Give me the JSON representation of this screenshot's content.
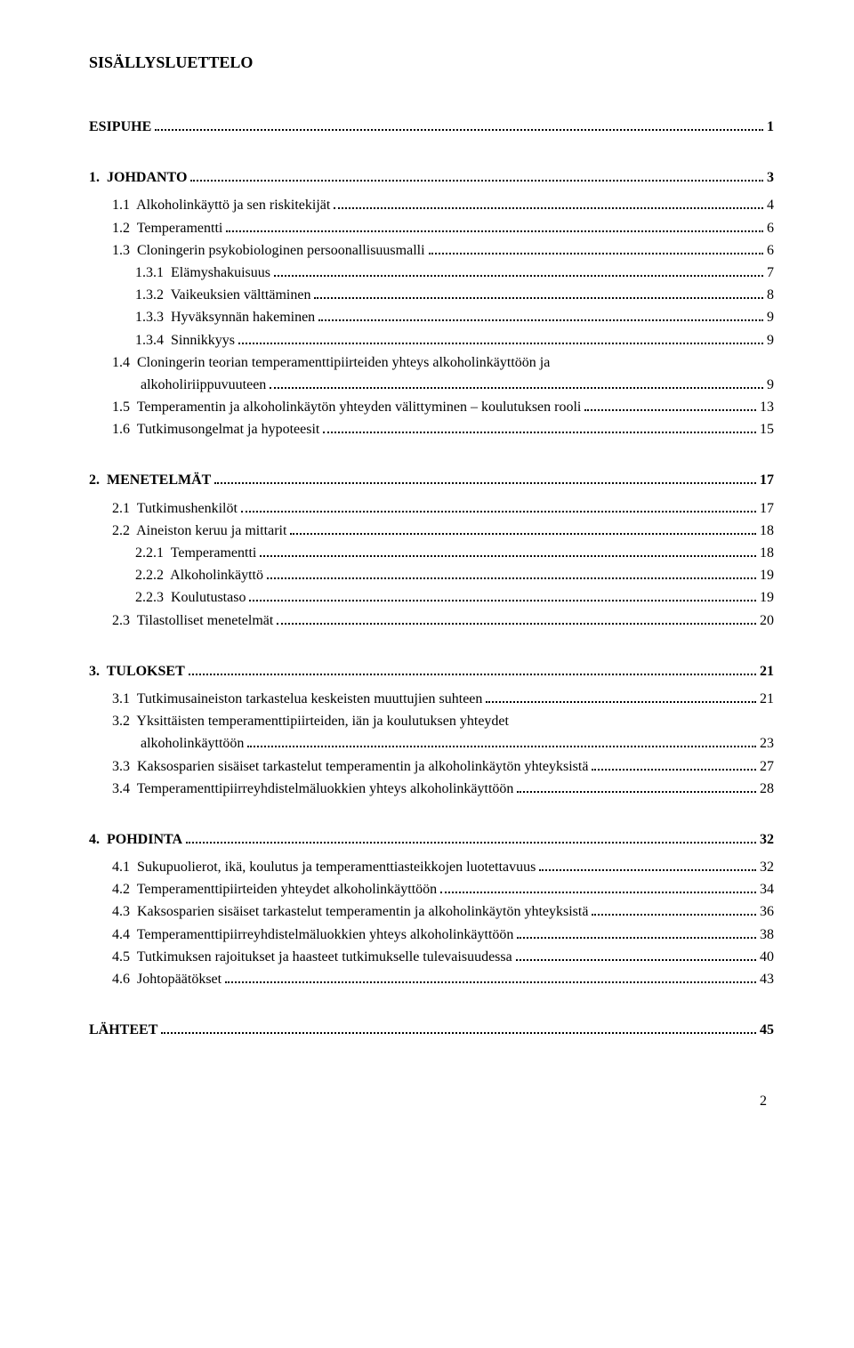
{
  "title": "SISÄLLYSLUETTELO",
  "toc": [
    {
      "label": "ESIPUHE",
      "page": "1",
      "heading": true,
      "indent": 0,
      "gap": "none"
    },
    {
      "label": "1.  JOHDANTO",
      "page": "3",
      "heading": true,
      "indent": 0,
      "gap": "large"
    },
    {
      "label": "1.1  Alkoholinkäyttö ja sen riskitekijät",
      "page": "4",
      "heading": false,
      "indent": 1,
      "gap": "small"
    },
    {
      "label": "1.2  Temperamentti",
      "page": "6",
      "heading": false,
      "indent": 1,
      "gap": "none"
    },
    {
      "label": "1.3  Cloningerin psykobiologinen persoonallisuusmalli",
      "page": "6",
      "heading": false,
      "indent": 1,
      "gap": "none"
    },
    {
      "label": "1.3.1  Elämyshakuisuus",
      "page": "7",
      "heading": false,
      "indent": 2,
      "gap": "none"
    },
    {
      "label": "1.3.2  Vaikeuksien välttäminen",
      "page": "8",
      "heading": false,
      "indent": 2,
      "gap": "none"
    },
    {
      "label": "1.3.3  Hyväksynnän hakeminen",
      "page": "9",
      "heading": false,
      "indent": 2,
      "gap": "none"
    },
    {
      "label": "1.3.4  Sinnikkyys",
      "page": "9",
      "heading": false,
      "indent": 2,
      "gap": "none"
    },
    {
      "label": "1.4  Cloningerin teorian temperamenttipiirteiden yhteys alkoholinkäyttöön ja",
      "page": "",
      "heading": false,
      "indent": 1,
      "gap": "none",
      "nodots": true
    },
    {
      "label": "        alkoholiriippuvuuteen",
      "page": "9",
      "heading": false,
      "indent": 1,
      "gap": "none"
    },
    {
      "label": "1.5  Temperamentin ja alkoholinkäytön yhteyden välittyminen – koulutuksen rooli",
      "page": "13",
      "heading": false,
      "indent": 1,
      "gap": "none"
    },
    {
      "label": "1.6  Tutkimusongelmat ja hypoteesit",
      "page": "15",
      "heading": false,
      "indent": 1,
      "gap": "none"
    },
    {
      "label": "2.  MENETELMÄT",
      "page": "17",
      "heading": true,
      "indent": 0,
      "gap": "large"
    },
    {
      "label": "2.1  Tutkimushenkilöt",
      "page": "17",
      "heading": false,
      "indent": 1,
      "gap": "small"
    },
    {
      "label": "2.2  Aineiston keruu ja mittarit",
      "page": "18",
      "heading": false,
      "indent": 1,
      "gap": "none"
    },
    {
      "label": "2.2.1  Temperamentti",
      "page": "18",
      "heading": false,
      "indent": 2,
      "gap": "none"
    },
    {
      "label": "2.2.2  Alkoholinkäyttö",
      "page": "19",
      "heading": false,
      "indent": 2,
      "gap": "none"
    },
    {
      "label": "2.2.3  Koulutustaso",
      "page": "19",
      "heading": false,
      "indent": 2,
      "gap": "none"
    },
    {
      "label": "2.3  Tilastolliset menetelmät",
      "page": "20",
      "heading": false,
      "indent": 1,
      "gap": "none"
    },
    {
      "label": "3.  TULOKSET",
      "page": "21",
      "heading": true,
      "indent": 0,
      "gap": "large"
    },
    {
      "label": "3.1  Tutkimusaineiston tarkastelua keskeisten muuttujien suhteen",
      "page": "21",
      "heading": false,
      "indent": 1,
      "gap": "small"
    },
    {
      "label": "3.2  Yksittäisten temperamenttipiirteiden, iän ja koulutuksen yhteydet",
      "page": "",
      "heading": false,
      "indent": 1,
      "gap": "none",
      "nodots": true
    },
    {
      "label": "        alkoholinkäyttöön",
      "page": "23",
      "heading": false,
      "indent": 1,
      "gap": "none"
    },
    {
      "label": "3.3  Kaksosparien sisäiset tarkastelut temperamentin ja alkoholinkäytön yhteyksistä",
      "page": "27",
      "heading": false,
      "indent": 1,
      "gap": "none"
    },
    {
      "label": "3.4  Temperamenttipiirreyhdistelmäluokkien yhteys alkoholinkäyttöön",
      "page": "28",
      "heading": false,
      "indent": 1,
      "gap": "none"
    },
    {
      "label": "4.  POHDINTA",
      "page": "32",
      "heading": true,
      "indent": 0,
      "gap": "large"
    },
    {
      "label": "4.1  Sukupuolierot, ikä, koulutus ja temperamenttiasteikkojen luotettavuus",
      "page": "32",
      "heading": false,
      "indent": 1,
      "gap": "small"
    },
    {
      "label": "4.2  Temperamenttipiirteiden yhteydet alkoholinkäyttöön",
      "page": "34",
      "heading": false,
      "indent": 1,
      "gap": "none"
    },
    {
      "label": "4.3  Kaksosparien sisäiset tarkastelut temperamentin ja alkoholinkäytön yhteyksistä",
      "page": "36",
      "heading": false,
      "indent": 1,
      "gap": "none"
    },
    {
      "label": "4.4  Temperamenttipiirreyhdistelmäluokkien yhteys alkoholinkäyttöön",
      "page": "38",
      "heading": false,
      "indent": 1,
      "gap": "none"
    },
    {
      "label": "4.5  Tutkimuksen rajoitukset ja haasteet tutkimukselle tulevaisuudessa",
      "page": "40",
      "heading": false,
      "indent": 1,
      "gap": "none"
    },
    {
      "label": "4.6  Johtopäätökset",
      "page": "43",
      "heading": false,
      "indent": 1,
      "gap": "none"
    },
    {
      "label": "LÄHTEET",
      "page": "45",
      "heading": true,
      "indent": 0,
      "gap": "large"
    }
  ],
  "pageNumber": "2"
}
